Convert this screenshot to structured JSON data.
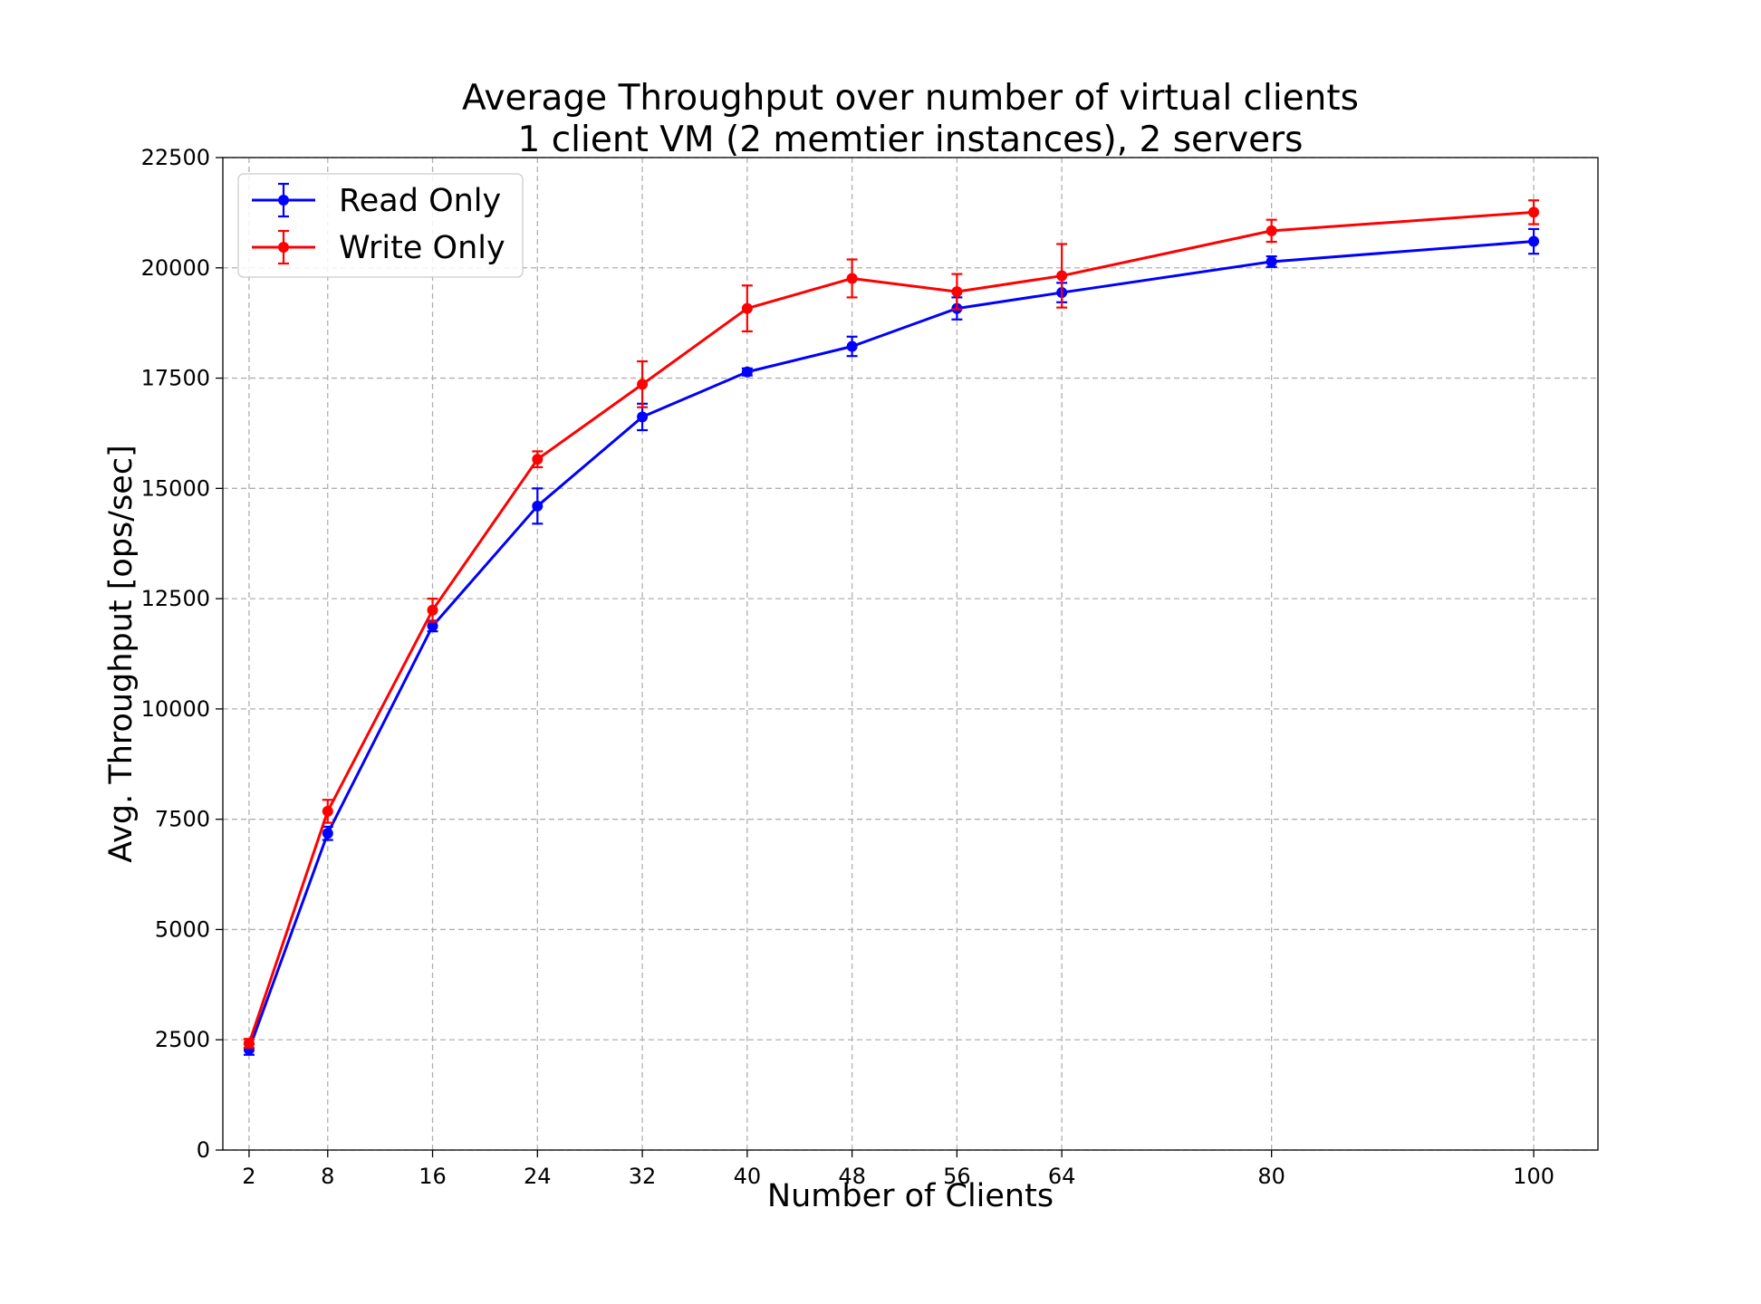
{
  "chart_data": {
    "type": "line",
    "title": "Average Throughput over number of virtual clients",
    "subtitle": "1 client VM (2 memtier instances), 2 servers",
    "xlabel": "Number of Clients",
    "ylabel": "Avg. Throughput [ops/sec]",
    "x": [
      2,
      8,
      16,
      24,
      32,
      40,
      48,
      56,
      64,
      80,
      100
    ],
    "x_ticks": [
      2,
      8,
      16,
      24,
      32,
      40,
      48,
      56,
      64,
      80,
      100
    ],
    "y_ticks": [
      0,
      2500,
      5000,
      7500,
      10000,
      12500,
      15000,
      17500,
      20000,
      22500
    ],
    "xlim": [
      0,
      104.9
    ],
    "ylim": [
      0,
      22500
    ],
    "grid": true,
    "legend_position": "top-left",
    "series": [
      {
        "name": "Read Only",
        "color": "#0000ff",
        "values": [
          2280,
          7180,
          11880,
          14600,
          16620,
          17640,
          18220,
          19080,
          19440,
          20140,
          20600
        ],
        "errors": [
          120,
          150,
          120,
          400,
          300,
          80,
          220,
          250,
          220,
          120,
          280
        ]
      },
      {
        "name": "Write Only",
        "color": "#ff0000",
        "values": [
          2420,
          7680,
          12240,
          15660,
          17360,
          19080,
          19760,
          19460,
          19820,
          20840,
          21260
        ],
        "errors": [
          100,
          260,
          260,
          180,
          520,
          520,
          430,
          400,
          720,
          250,
          270
        ]
      }
    ]
  }
}
